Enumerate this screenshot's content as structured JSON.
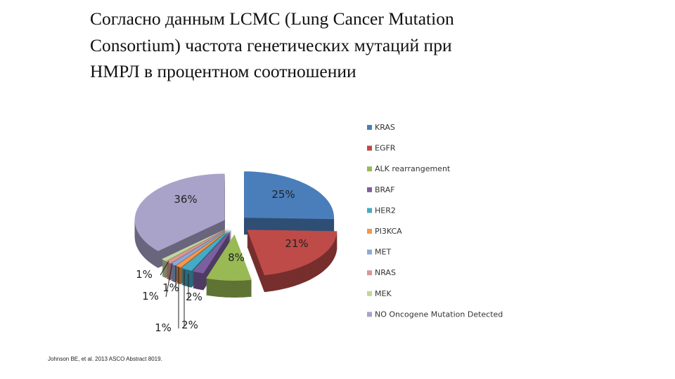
{
  "title_lines": [
    "Согласно  данным LCMC (Lung Cancer Mutation",
    "Consortium)  частота генетических мутаций при",
    "НМРЛ  в процентном соотношении"
  ],
  "source": "Johnson BE, et al. 2013 ASCO Abstract 8019.",
  "chart_data": {
    "type": "pie",
    "style": "3d-exploded",
    "legend_position": "right",
    "categories": [
      "KRAS",
      "EGFR",
      "ALK rearrangement",
      "BRAF",
      "HER2",
      "PI3KCA",
      "MET",
      "NRAS",
      "MEK",
      "NO Oncogene Mutation Detected"
    ],
    "values": [
      25,
      21,
      8,
      2,
      2,
      1,
      1,
      1,
      1,
      36
    ],
    "data_labels": [
      "25%",
      "21%",
      "8%",
      "2%",
      "2%",
      "1%",
      "1%",
      "1%",
      "1%",
      "36%"
    ],
    "colors": [
      "#4a7ebb",
      "#be4b48",
      "#98b954",
      "#7d5fa0",
      "#46aac5",
      "#f79646",
      "#8da9d6",
      "#d99694",
      "#c3d69b",
      "#a9a3c9"
    ]
  }
}
